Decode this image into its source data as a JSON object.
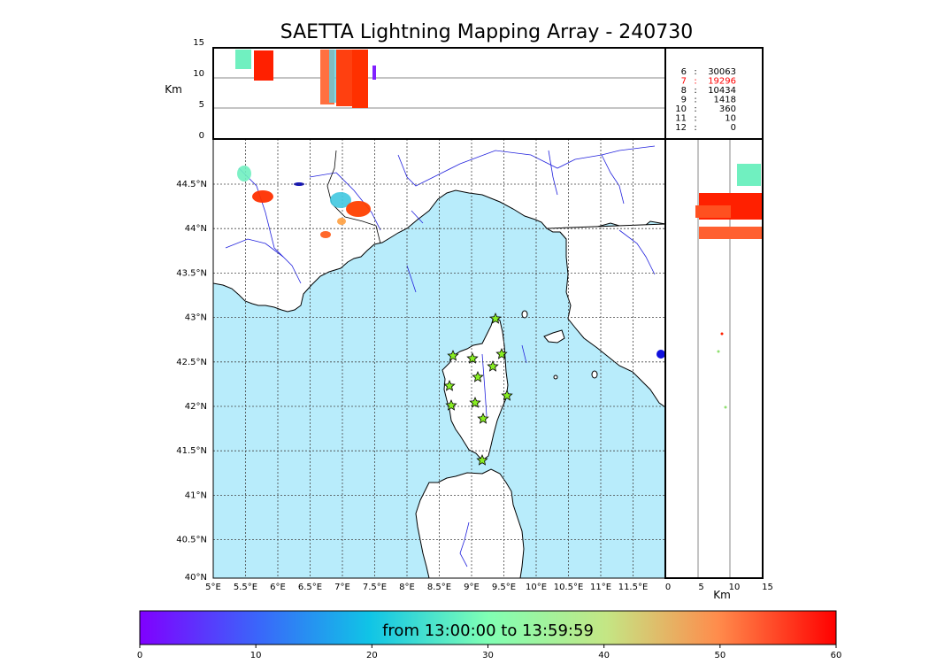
{
  "title": "SAETTA Lightning Mapping Array - 240730",
  "altitude_panel": {
    "ylabel": "Km",
    "yticks": [
      "15",
      "10",
      "5",
      "0"
    ]
  },
  "side_panel": {
    "xlabel": "Km",
    "xticks": [
      "0",
      "5",
      "10",
      "15"
    ]
  },
  "map": {
    "lat_labels": [
      "44.5°N",
      "44°N",
      "43.5°N",
      "43°N",
      "42.5°N",
      "42°N",
      "41.5°N",
      "41°N",
      "40.5°N",
      "40°N"
    ],
    "lon_labels": [
      "5°E",
      "5.5°E",
      "6°E",
      "6.5°E",
      "7°E",
      "7.5°E",
      "8°E",
      "8.5°E",
      "9°E",
      "9.5°E",
      "10°E",
      "10.5°E",
      "11°E",
      "11.5°E"
    ],
    "colors": {
      "sea": "#b8ecfb",
      "land": "#ffffff",
      "rivers": "#2222dd",
      "coast": "#000000",
      "stations": "#88ee22"
    }
  },
  "station_counts": [
    {
      "stations": "6",
      "sep": ":",
      "count": "30063",
      "color": "#000000"
    },
    {
      "stations": "7",
      "sep": ":",
      "count": "19296",
      "color": "#ff0000"
    },
    {
      "stations": "8",
      "sep": ":",
      "count": "10434",
      "color": "#000000"
    },
    {
      "stations": "9",
      "sep": ":",
      "count": "1418",
      "color": "#000000"
    },
    {
      "stations": "10",
      "sep": ":",
      "count": "360",
      "color": "#000000"
    },
    {
      "stations": "11",
      "sep": ":",
      "count": "10",
      "color": "#000000"
    },
    {
      "stations": "12",
      "sep": ":",
      "count": "0",
      "color": "#000000"
    }
  ],
  "colorbar": {
    "label": "from 13:00:00 to 13:59:59",
    "ticks": [
      "0",
      "10",
      "20",
      "30",
      "40",
      "50",
      "60"
    ],
    "colormap": "rainbow"
  }
}
